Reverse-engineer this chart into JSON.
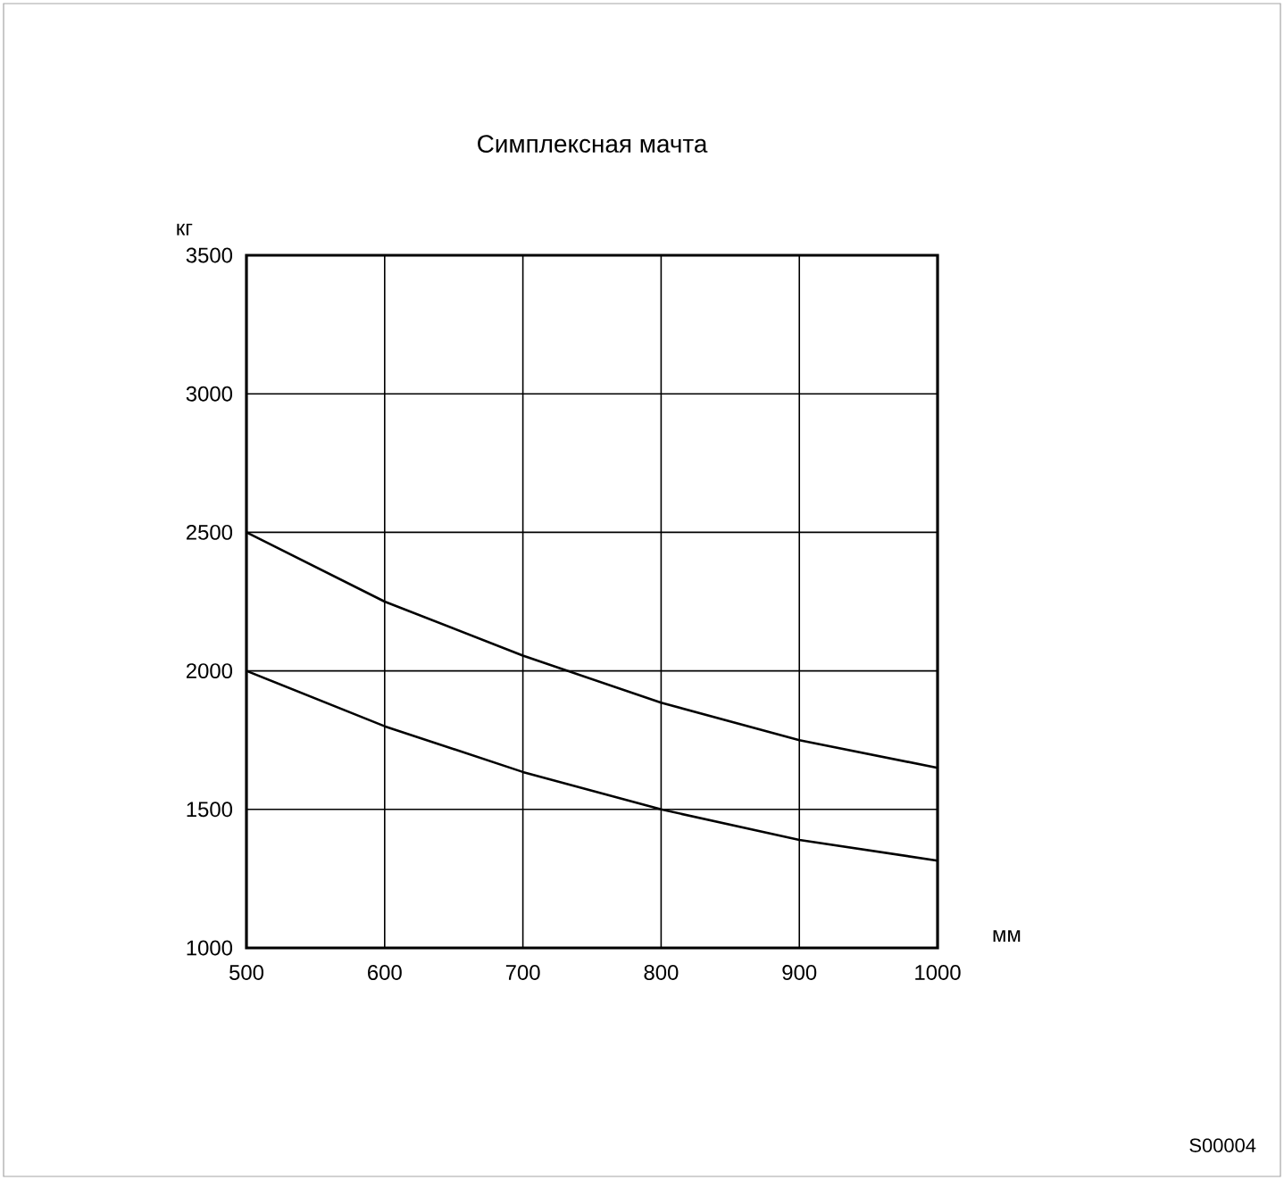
{
  "chart_data": {
    "type": "line",
    "title": "Симплексная мачта",
    "xlabel": "мм",
    "ylabel": "кг",
    "x": [
      500,
      600,
      700,
      800,
      900,
      1000
    ],
    "series": [
      {
        "color": "#000000",
        "values": [
          2500,
          2250,
          2055,
          1885,
          1750,
          1650
        ]
      },
      {
        "color": "#000000",
        "values": [
          2000,
          1800,
          1635,
          1500,
          1390,
          1315
        ]
      }
    ],
    "xlim": [
      500,
      1000
    ],
    "ylim": [
      1000,
      3500
    ],
    "xticks": [
      500,
      600,
      700,
      800,
      900,
      1000
    ],
    "yticks": [
      1000,
      1500,
      2000,
      2500,
      3000,
      3500
    ],
    "grid": true,
    "line_style": "solid",
    "annotations": [
      "S00004"
    ]
  }
}
